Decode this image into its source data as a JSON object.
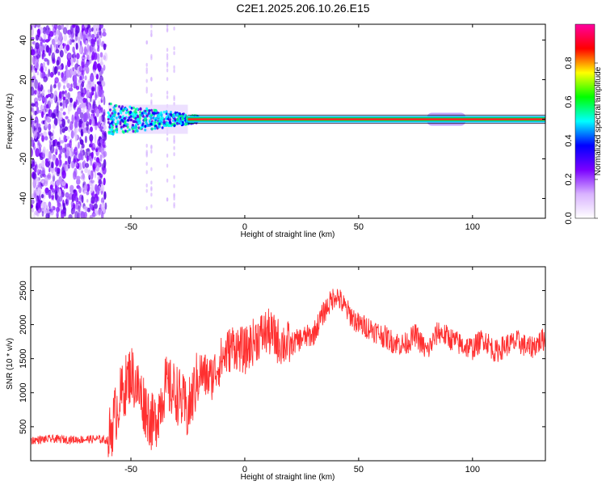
{
  "title": "C2E1.2025.206.10.26.E15",
  "chart_data": [
    {
      "type": "heatmap",
      "xlabel": "Height of straight line (km)",
      "ylabel": "Frequency (Hz)",
      "xlim": [
        -94,
        132
      ],
      "ylim": [
        -50,
        48
      ],
      "xticks": [
        -50,
        0,
        50,
        100
      ],
      "yticks": [
        -40,
        -20,
        0,
        20,
        40
      ],
      "colorbar": {
        "label": "Normalized spectral amplitude",
        "range": [
          0.0,
          1.0
        ],
        "ticks": [
          "0.0",
          "0.2",
          "0.4",
          "0.6",
          "0.8"
        ],
        "tick_values": [
          0.0,
          0.2,
          0.4,
          0.6,
          0.8
        ],
        "colors": [
          "#ffffff",
          "#d9b3ff",
          "#7a00ff",
          "#0000ff",
          "#00ffff",
          "#00ff00",
          "#ffff00",
          "#ff0000",
          "#ff00a0"
        ]
      },
      "regions": [
        {
          "x": [
            -94,
            -61
          ],
          "description_level": 0.15
        },
        {
          "x": [
            -61,
            -30
          ],
          "description_level": 0.4
        },
        {
          "x": [
            -30,
            132
          ],
          "description_level": 0.9
        }
      ],
      "ridge": {
        "frequency": 0,
        "x_start": -60,
        "x_end": 132
      }
    },
    {
      "type": "line",
      "xlabel": "Height of straight line (km)",
      "ylabel": "SNR (10 * v/v)",
      "xlim": [
        -94,
        132
      ],
      "ylim": [
        0,
        2850
      ],
      "xticks": [
        -50,
        0,
        50,
        100
      ],
      "yticks": [
        500,
        1000,
        1500,
        2000,
        2500
      ],
      "series": [
        {
          "color": "#ff3030",
          "x": [
            -94,
            -85,
            -75,
            -65,
            -60,
            -55,
            -50,
            -45,
            -40,
            -35,
            -30,
            -25,
            -20,
            -15,
            -10,
            -5,
            0,
            5,
            10,
            15,
            20,
            25,
            30,
            35,
            40,
            45,
            50,
            55,
            60,
            65,
            70,
            75,
            80,
            85,
            90,
            95,
            100,
            105,
            110,
            115,
            120,
            125,
            132
          ],
          "y": [
            300,
            320,
            310,
            320,
            300,
            900,
            1300,
            900,
            500,
            1100,
            1000,
            700,
            1300,
            1200,
            1500,
            1700,
            1600,
            1800,
            1900,
            1750,
            1700,
            1800,
            1850,
            2200,
            2450,
            2200,
            2000,
            1950,
            1850,
            1750,
            1700,
            1850,
            1600,
            1900,
            1800,
            1700,
            1650,
            1800,
            1600,
            1700,
            1750,
            1650,
            1800
          ]
        }
      ]
    }
  ]
}
